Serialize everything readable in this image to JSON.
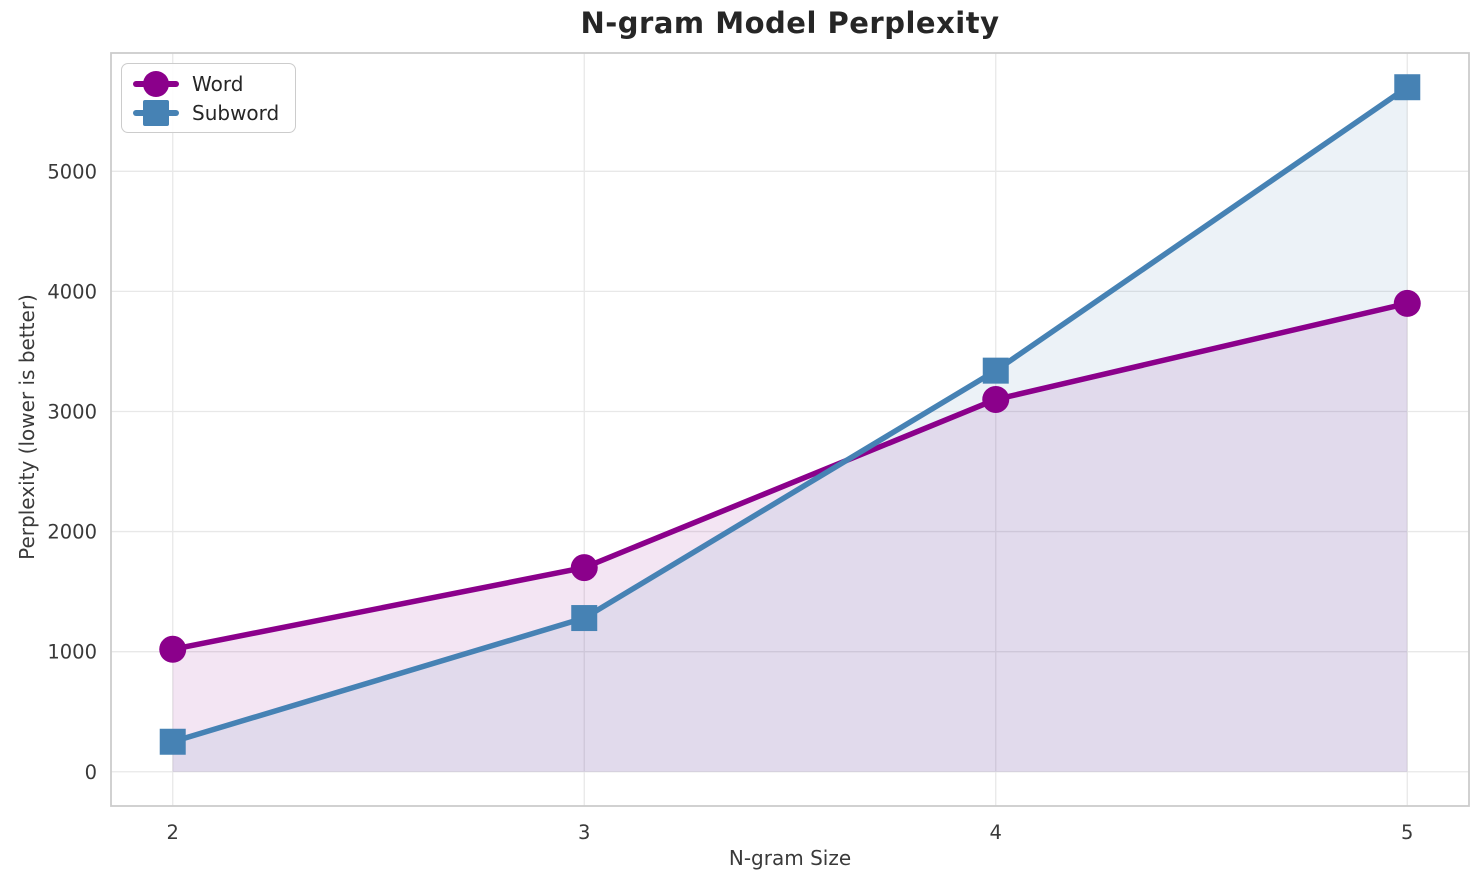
{
  "chart_data": {
    "type": "line",
    "title": "N-gram Model Perplexity",
    "xlabel": "N-gram Size",
    "ylabel": "Perplexity (lower is better)",
    "x": [
      2,
      3,
      4,
      5
    ],
    "series": [
      {
        "name": "Word",
        "marker": "circle",
        "color": "#8B008B",
        "values": [
          1020,
          1700,
          3100,
          3900
        ]
      },
      {
        "name": "Subword",
        "marker": "square",
        "color": "#4682B4",
        "values": [
          250,
          1280,
          3340,
          5700
        ]
      }
    ],
    "xticks": [
      2,
      3,
      4,
      5
    ],
    "yticks": [
      0,
      1000,
      2000,
      3000,
      4000,
      5000
    ],
    "xlim": [
      1.85,
      5.15
    ],
    "ylim": [
      -285,
      5985
    ],
    "grid": true,
    "area_fill_to_zero": true,
    "fill_opacity": 0.1,
    "line_width": 5.5,
    "legend_position": "upper-left",
    "colors": {
      "gridline": "#e8e8e8",
      "spine": "#cccccc",
      "tick_text": "#3a3a3a",
      "title_text": "#262626"
    }
  }
}
